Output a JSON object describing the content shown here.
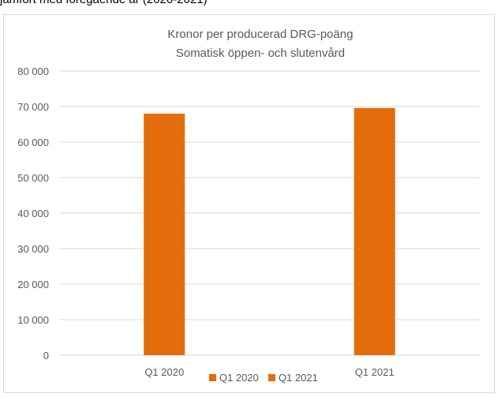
{
  "header": {
    "caption": "jämfört med föregående år (2020-2021)"
  },
  "chart_data": {
    "type": "bar",
    "title": "Kronor per producerad DRG-poäng",
    "subtitle": "Somatisk öppen- och slutenvård",
    "categories": [
      "Q1 2020",
      "Q1 2021"
    ],
    "series": [
      {
        "name": "Q1 2020",
        "values": [
          68000,
          null
        ]
      },
      {
        "name": "Q1 2021",
        "values": [
          null,
          69600
        ]
      }
    ],
    "ylim": [
      0,
      80000
    ],
    "yticks": [
      "0",
      "10 000",
      "20 000",
      "30 000",
      "40 000",
      "50 000",
      "60 000",
      "70 000",
      "80 000"
    ],
    "ytick_values": [
      0,
      10000,
      20000,
      30000,
      40000,
      50000,
      60000,
      70000,
      80000
    ],
    "grid": true,
    "legend_position": "bottom",
    "bar_color": "#e46c0a"
  }
}
